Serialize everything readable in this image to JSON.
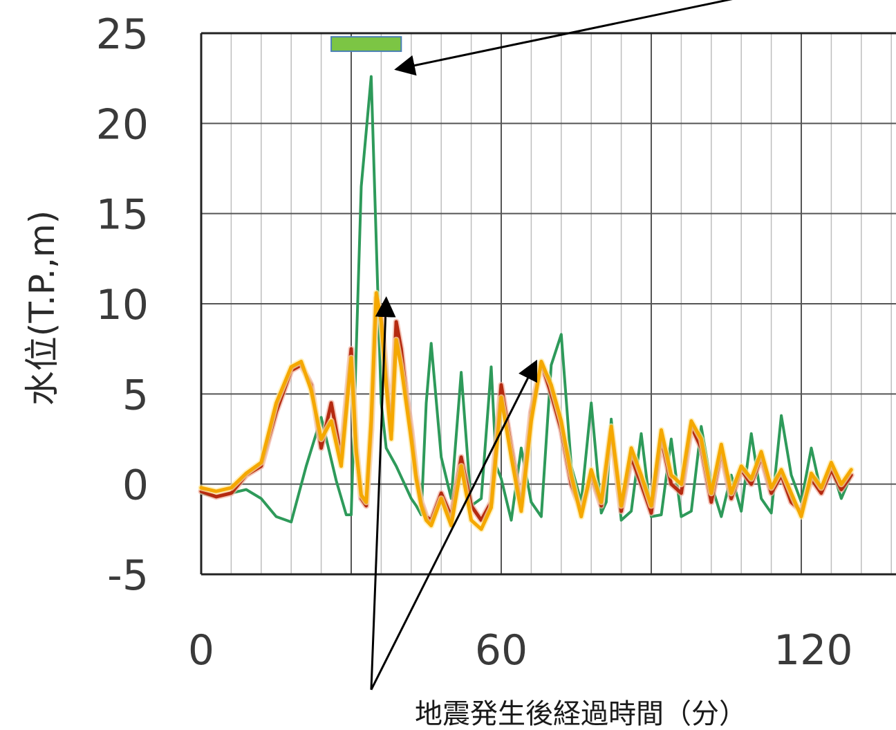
{
  "chart_data": {
    "type": "line",
    "ylabel": "水位(T.P.,m)",
    "xlabel": "地震発生後経過時間（分）",
    "xlim": [
      0,
      130
    ],
    "ylim": [
      -5,
      25
    ],
    "x_ticks": [
      "0",
      "60",
      "120"
    ],
    "y_ticks": [
      "25",
      "20",
      "15",
      "10",
      "5",
      "0",
      "-5"
    ],
    "grid": true,
    "series": [
      {
        "color": "#2e9a5a",
        "x": [
          0,
          3,
          6,
          9,
          12,
          15,
          18,
          21,
          24,
          27,
          29,
          30,
          32,
          34,
          36,
          37,
          38,
          39,
          40,
          41,
          42,
          43,
          44,
          45,
          46,
          48,
          50,
          52,
          54,
          56,
          58,
          59,
          60,
          62,
          64,
          66,
          68,
          70,
          72,
          74,
          76,
          78,
          80,
          81,
          82,
          84,
          86,
          88,
          90,
          92,
          94,
          96,
          98,
          100,
          102,
          104,
          106,
          108,
          110,
          112,
          114,
          116,
          118,
          120,
          122,
          124,
          126,
          128,
          130
        ],
        "y": [
          -0.5,
          -0.7,
          -0.5,
          -0.3,
          -0.8,
          -1.8,
          -2.1,
          1.0,
          3.7,
          0.2,
          -1.7,
          -1.7,
          16.5,
          22.6,
          4.5,
          2.0,
          1.5,
          1.0,
          0.4,
          -0.2,
          -0.8,
          -1.2,
          -1.7,
          4.5,
          7.8,
          1.5,
          -0.8,
          6.2,
          -1.2,
          -0.8,
          6.5,
          1.0,
          0.3,
          -2.0,
          2.0,
          -1.0,
          -1.8,
          6.6,
          8.3,
          1.0,
          -1.0,
          4.5,
          -1.6,
          -1.0,
          3.6,
          -2.0,
          -1.5,
          2.8,
          -1.8,
          -1.7,
          2.5,
          -1.8,
          -1.5,
          3.2,
          0.0,
          -1.8,
          0.5,
          -1.5,
          2.8,
          -0.8,
          -1.6,
          3.8,
          0.5,
          -1.0,
          2.0,
          -0.5,
          1.0,
          -0.8,
          0.5
        ]
      },
      {
        "color": "#b52a10",
        "x": [
          0,
          3,
          6,
          9,
          12,
          15,
          18,
          20,
          22,
          24,
          26,
          28,
          30,
          31,
          32,
          33,
          34,
          35,
          36,
          37,
          38,
          39,
          40,
          41,
          42,
          43,
          44,
          45,
          46,
          48,
          50,
          52,
          54,
          56,
          58,
          60,
          62,
          64,
          66,
          68,
          70,
          72,
          74,
          76,
          78,
          80,
          82,
          84,
          86,
          88,
          90,
          92,
          94,
          96,
          98,
          100,
          102,
          104,
          106,
          108,
          110,
          112,
          114,
          116,
          118,
          120,
          122,
          124,
          126,
          128,
          130
        ],
        "y": [
          -0.4,
          -0.7,
          -0.5,
          0.5,
          1.0,
          4.0,
          6.3,
          6.6,
          5.5,
          2.0,
          4.5,
          1.5,
          7.5,
          2.0,
          -0.8,
          -1.2,
          3.0,
          10.3,
          9.5,
          6.0,
          3.0,
          9.0,
          7.5,
          5.0,
          3.0,
          0.5,
          -1.0,
          -1.8,
          -2.0,
          -0.5,
          -1.8,
          1.5,
          -1.2,
          -2.0,
          -1.0,
          5.5,
          2.0,
          -1.2,
          4.0,
          6.7,
          5.0,
          3.0,
          0.0,
          -1.5,
          0.5,
          -1.2,
          3.0,
          -1.5,
          1.5,
          0.0,
          -1.6,
          2.5,
          0.0,
          -0.5,
          3.2,
          2.0,
          -1.0,
          1.8,
          -0.8,
          0.8,
          0.0,
          1.5,
          -0.5,
          0.5,
          -1.0,
          -1.5,
          0.3,
          -0.5,
          0.8,
          -0.3,
          0.5
        ]
      },
      {
        "color": "#f5a800",
        "x": [
          0,
          3,
          6,
          9,
          12,
          15,
          18,
          20,
          22,
          24,
          26,
          28,
          30,
          31,
          32,
          33,
          34,
          35,
          36,
          37,
          38,
          39,
          40,
          41,
          42,
          43,
          44,
          45,
          46,
          48,
          50,
          52,
          54,
          56,
          58,
          60,
          62,
          64,
          66,
          68,
          70,
          72,
          74,
          76,
          78,
          80,
          82,
          84,
          86,
          88,
          90,
          92,
          94,
          96,
          98,
          100,
          102,
          104,
          106,
          108,
          110,
          112,
          114,
          116,
          118,
          120,
          122,
          124,
          126,
          128,
          130
        ],
        "y": [
          -0.2,
          -0.4,
          -0.2,
          0.6,
          1.2,
          4.5,
          6.5,
          6.8,
          5.2,
          2.5,
          3.5,
          1.0,
          7.0,
          1.8,
          -0.6,
          -1.0,
          3.5,
          10.6,
          9.0,
          5.5,
          2.5,
          8.0,
          6.5,
          4.5,
          2.5,
          0.3,
          -1.2,
          -2.0,
          -2.3,
          -0.8,
          -2.3,
          1.0,
          -2.0,
          -2.5,
          -1.3,
          4.8,
          1.5,
          -1.5,
          3.5,
          6.8,
          5.5,
          3.5,
          0.5,
          -1.8,
          0.8,
          -1.0,
          3.2,
          -1.2,
          2.0,
          0.5,
          -1.2,
          3.0,
          0.5,
          0.0,
          3.5,
          2.5,
          -0.5,
          2.2,
          -0.5,
          1.0,
          0.3,
          1.8,
          -0.2,
          0.8,
          -0.5,
          -1.8,
          0.6,
          -0.2,
          1.2,
          0.0,
          0.8
        ]
      }
    ],
    "annotations": [
      {
        "type": "bar",
        "color": "#7cc544",
        "border": "#4a7fb5",
        "x0": 26,
        "x1": 40,
        "y0": 24.0,
        "y1": 24.8
      },
      {
        "type": "arrow",
        "from": [
          108,
          27
        ],
        "to": [
          39,
          23
        ]
      },
      {
        "type": "arrow",
        "from": [
          34,
          -11.4
        ],
        "to": [
          37,
          10.3
        ]
      },
      {
        "type": "arrow",
        "from": [
          34,
          -11.4
        ],
        "to": [
          67,
          6.8
        ]
      }
    ]
  }
}
